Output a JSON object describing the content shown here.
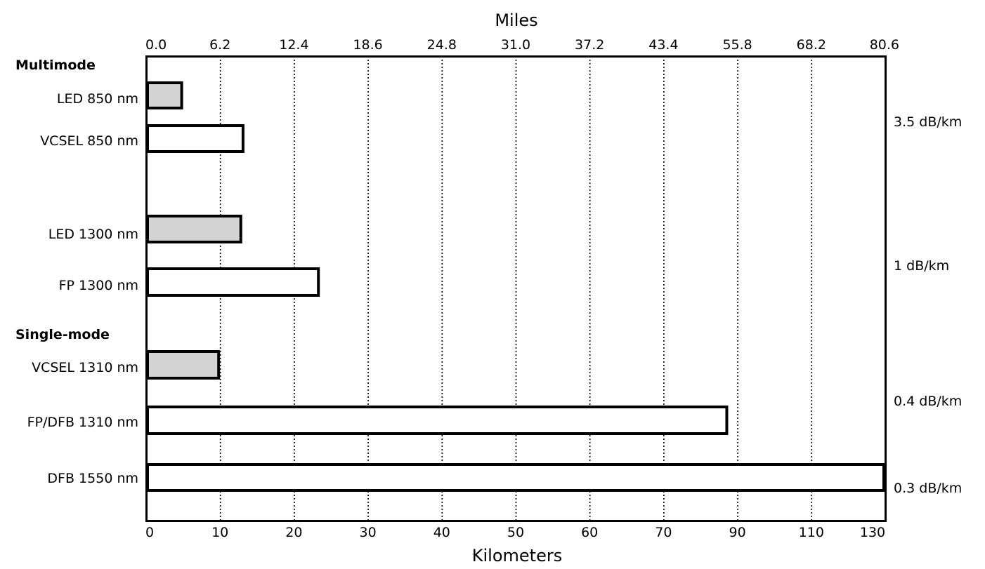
{
  "chart_data": {
    "type": "bar",
    "orientation": "horizontal",
    "top_axis_title": "Miles",
    "bottom_axis_title": "Kilometers",
    "top_ticks": [
      "0.0",
      "6.2",
      "12.4",
      "18.6",
      "24.8",
      "31.0",
      "37.2",
      "43.4",
      "55.8",
      "68.2",
      "80.6"
    ],
    "bottom_ticks": [
      "0",
      "10",
      "20",
      "30",
      "40",
      "50",
      "60",
      "70",
      "90",
      "110",
      "130"
    ],
    "tick_km_values": [
      0,
      10,
      20,
      30,
      40,
      50,
      60,
      70,
      90,
      110,
      130
    ],
    "xlim_km": [
      0,
      130
    ],
    "grid": "dotted vertical",
    "groups": [
      {
        "label": "Multimode"
      },
      {
        "label": "Single-mode"
      }
    ],
    "bars": [
      {
        "label": "LED 850 nm",
        "value_km": 5,
        "fill": "#d3d3d3"
      },
      {
        "label": "VCSEL 850 nm",
        "value_km": 13.3,
        "fill": "#ffffff"
      },
      {
        "label": "LED 1300 nm",
        "value_km": 13,
        "fill": "#d3d3d3"
      },
      {
        "label": "FP 1300 nm",
        "value_km": 23.5,
        "fill": "#ffffff"
      },
      {
        "label": "VCSEL 1310 nm",
        "value_km": 10,
        "fill": "#d3d3d3"
      },
      {
        "label": "FP/DFB 1310 nm",
        "value_km": 87.5,
        "fill": "#ffffff"
      },
      {
        "label": "DFB 1550 nm",
        "value_km": 130,
        "fill": "#ffffff"
      }
    ],
    "attenuation_labels": [
      "3.5 dB/km",
      "1 dB/km",
      "0.4 dB/km",
      "0.3 dB/km"
    ]
  }
}
